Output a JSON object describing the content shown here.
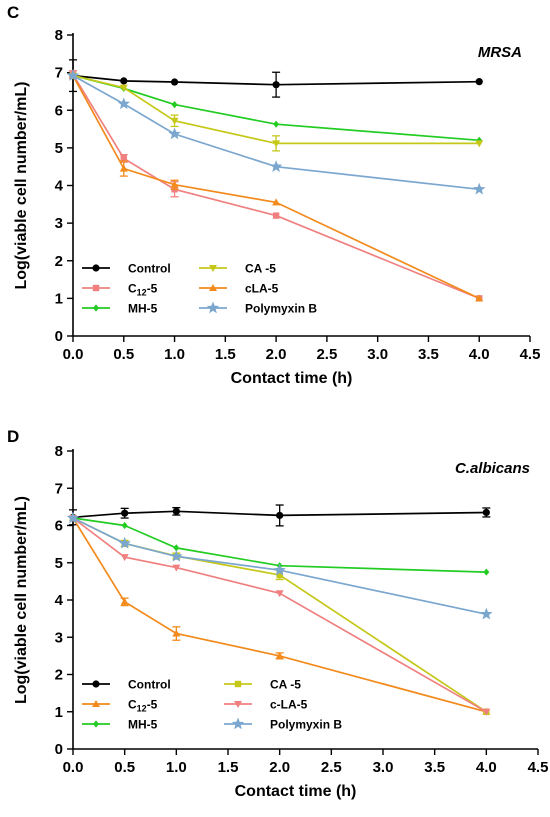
{
  "chart_data": [
    {
      "type": "line",
      "panel_label": "C",
      "organism": "MRSA",
      "xlabel": "Contact time  (h)",
      "ylabel": "Log(viable cell number/mL)",
      "xlim": [
        0,
        4.5
      ],
      "ylim": [
        0,
        8
      ],
      "xticks": [
        "0.0",
        "0.5",
        "1.0",
        "1.5",
        "2.0",
        "2.5",
        "3.0",
        "3.5",
        "4.0",
        "4.5"
      ],
      "yticks": [
        "0",
        "1",
        "2",
        "3",
        "4",
        "5",
        "6",
        "7",
        "8"
      ],
      "grid": false,
      "legend_position": "bottom-left",
      "x": [
        0,
        0.5,
        1,
        2,
        4
      ],
      "series": [
        {
          "name": "Control",
          "label_main": "Control",
          "label_sub": "",
          "label_rest": "",
          "color": "#000000",
          "marker": "circle",
          "values": [
            6.92,
            6.78,
            6.75,
            6.68,
            6.76
          ],
          "errors": [
            0.42,
            0,
            0,
            0.33,
            0
          ]
        },
        {
          "name": "C12-5",
          "label_main": "C",
          "label_sub": "12",
          "label_rest": "-5",
          "color": "#F08080",
          "marker": "square",
          "values": [
            6.95,
            4.72,
            3.9,
            3.2,
            1.0
          ],
          "errors": [
            0.1,
            0.1,
            0.2,
            0,
            0
          ]
        },
        {
          "name": "MH-5",
          "label_main": "MH-5",
          "label_sub": "",
          "label_rest": "",
          "color": "#22CC22",
          "marker": "diamond",
          "values": [
            6.92,
            6.58,
            6.15,
            5.63,
            5.2
          ],
          "errors": [
            0,
            0,
            0,
            0,
            0
          ]
        },
        {
          "name": "CA -5",
          "label_main": "CA -5",
          "label_sub": "",
          "label_rest": "",
          "color": "#C5C818",
          "marker": "triangle-down",
          "values": [
            6.92,
            6.6,
            5.72,
            5.12,
            5.12
          ],
          "errors": [
            0,
            0,
            0.15,
            0.2,
            0
          ]
        },
        {
          "name": "cLA-5",
          "label_main": "cLA-5",
          "label_sub": "",
          "label_rest": "",
          "color": "#F28A1C",
          "marker": "triangle-up",
          "values": [
            6.92,
            4.45,
            4.02,
            3.55,
            1.0
          ],
          "errors": [
            0,
            0.2,
            0.12,
            0,
            0
          ]
        },
        {
          "name": "Polymyxin B",
          "label_main": "Polymyxin B",
          "label_sub": "",
          "label_rest": "",
          "color": "#7BA7CF",
          "marker": "star",
          "values": [
            6.92,
            6.17,
            5.37,
            4.5,
            3.9
          ],
          "errors": [
            0,
            0,
            0,
            0,
            0
          ]
        }
      ]
    },
    {
      "type": "line",
      "panel_label": "D",
      "organism": "C.albicans",
      "xlabel": "Contact time  (h)",
      "ylabel": "Log(viable cell number/mL)",
      "xlim": [
        0,
        4.5
      ],
      "ylim": [
        0,
        8
      ],
      "xticks": [
        "0.0",
        "0.5",
        "1.0",
        "1.5",
        "2.0",
        "2.5",
        "3.0",
        "3.5",
        "4.0",
        "4.5"
      ],
      "yticks": [
        "0",
        "1",
        "2",
        "3",
        "4",
        "5",
        "6",
        "7",
        "8"
      ],
      "grid": false,
      "legend_position": "bottom-left",
      "x": [
        0,
        0.5,
        1,
        2,
        4
      ],
      "series": [
        {
          "name": "Control",
          "label_main": "Control",
          "label_sub": "",
          "label_rest": "",
          "color": "#000000",
          "marker": "circle",
          "values": [
            6.22,
            6.33,
            6.38,
            6.27,
            6.35
          ],
          "errors": [
            0.2,
            0.13,
            0.1,
            0.28,
            0.12
          ]
        },
        {
          "name": "C12-5",
          "label_main": "C",
          "label_sub": "12",
          "label_rest": "-5",
          "color": "#F28A1C",
          "marker": "triangle-up",
          "values": [
            6.2,
            3.95,
            3.1,
            2.5,
            1.0
          ],
          "errors": [
            0,
            0.1,
            0.18,
            0.08,
            0
          ]
        },
        {
          "name": "MH-5",
          "label_main": "MH-5",
          "label_sub": "",
          "label_rest": "",
          "color": "#22CC22",
          "marker": "diamond",
          "values": [
            6.2,
            6.0,
            5.4,
            4.92,
            4.75
          ],
          "errors": [
            0,
            0,
            0,
            0,
            0
          ]
        },
        {
          "name": "CA -5",
          "label_main": "CA -5",
          "label_sub": "",
          "label_rest": "",
          "color": "#C5C818",
          "marker": "square",
          "values": [
            6.2,
            5.52,
            5.18,
            4.67,
            1.0
          ],
          "errors": [
            0,
            0.08,
            0.08,
            0.12,
            0
          ]
        },
        {
          "name": "c-LA-5",
          "label_main": "c-LA-5",
          "label_sub": "",
          "label_rest": "",
          "color": "#F08080",
          "marker": "triangle-down",
          "values": [
            6.2,
            5.15,
            4.87,
            4.18,
            1.0
          ],
          "errors": [
            0,
            0,
            0,
            0,
            0
          ]
        },
        {
          "name": "Polymyxin B",
          "label_main": "Polymyxin B",
          "label_sub": "",
          "label_rest": "",
          "color": "#7BA7CF",
          "marker": "star",
          "values": [
            6.2,
            5.52,
            5.17,
            4.8,
            3.62
          ],
          "errors": [
            0,
            0,
            0,
            0,
            0
          ]
        }
      ]
    }
  ]
}
